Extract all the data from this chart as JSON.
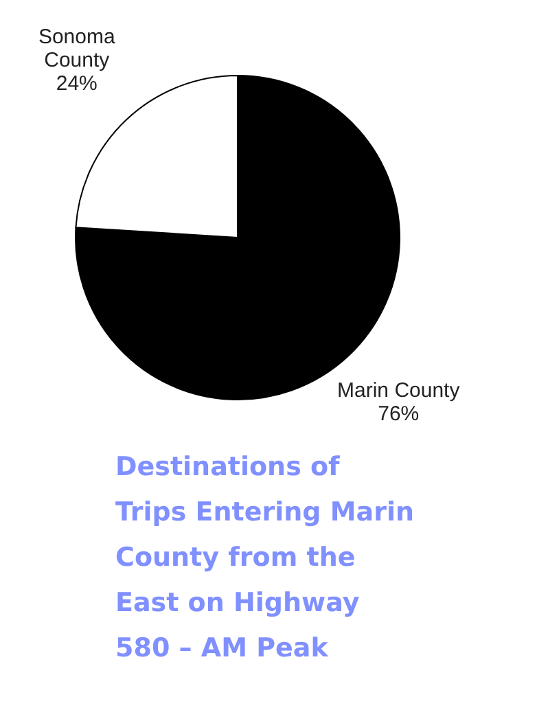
{
  "chart_data": {
    "type": "pie",
    "title": "Destinations of\nTrips Entering Marin\nCounty from the\nEast on Highway\n580 – AM Peak",
    "categories": [
      "Marin County",
      "Sonoma\nCounty"
    ],
    "values": [
      76,
      24
    ],
    "colors": [
      "#000000",
      "#ffffff"
    ],
    "value_labels": [
      "76%",
      "24%"
    ]
  }
}
